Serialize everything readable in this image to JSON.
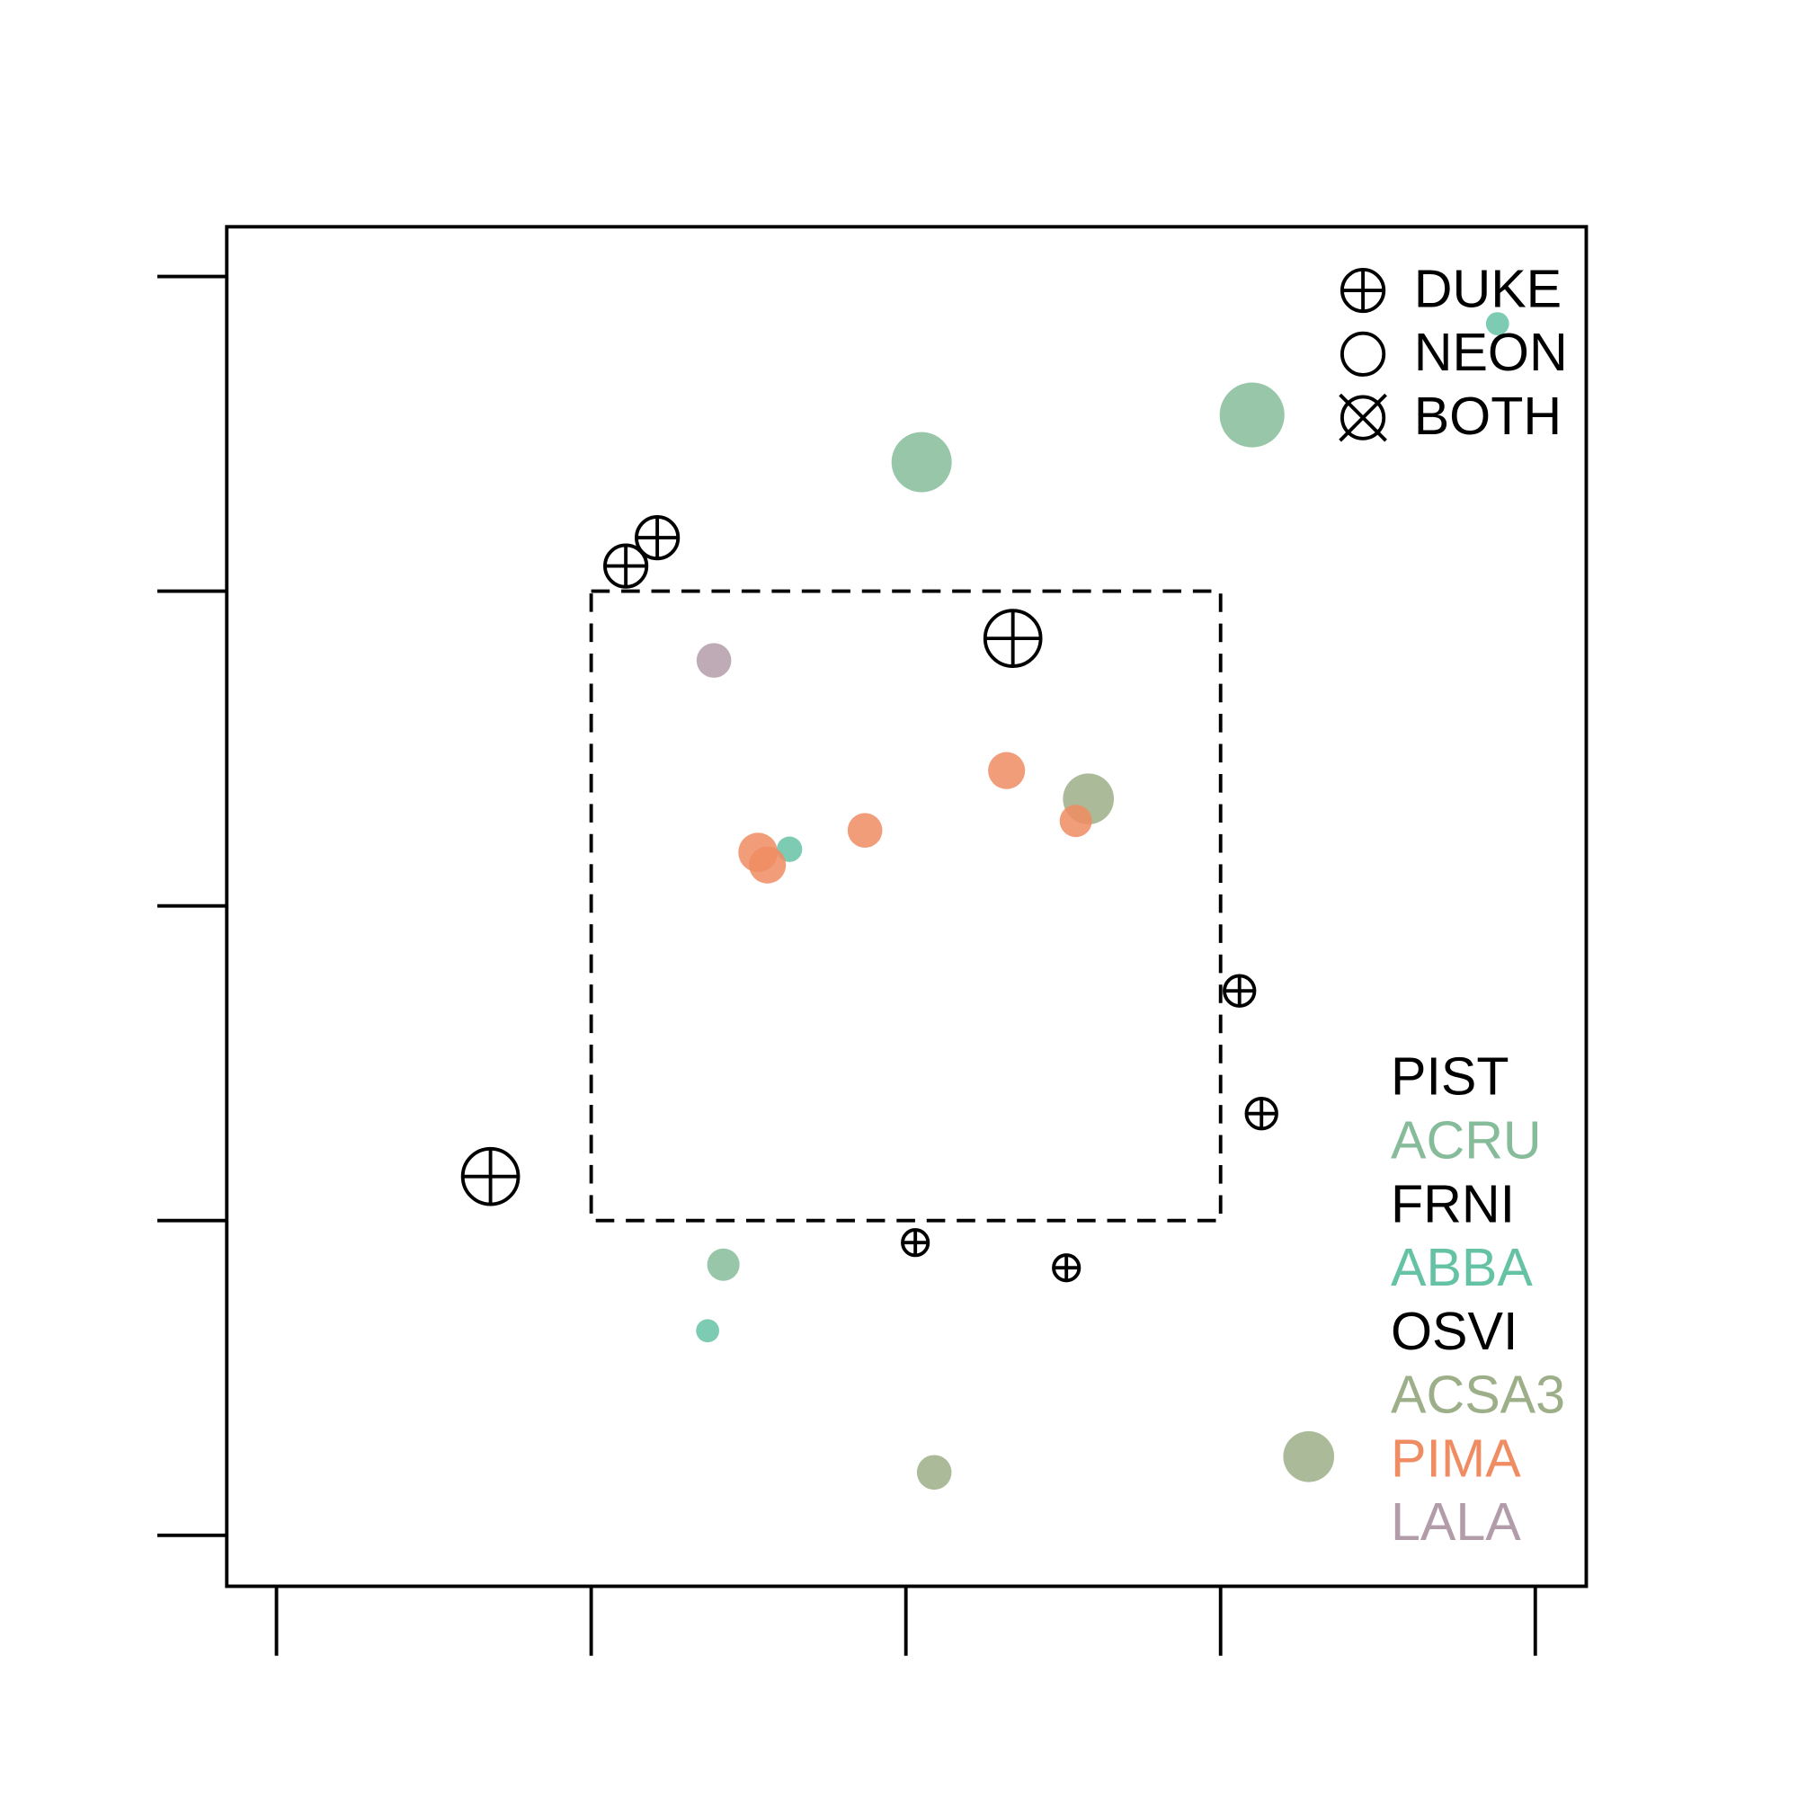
{
  "chart_data": {
    "type": "scatter",
    "xlim": [
      -2.158,
      2.162
    ],
    "ylim": [
      -2.162,
      2.158
    ],
    "xticks": [
      -2,
      -1,
      0,
      1,
      2
    ],
    "yticks": [
      -2,
      -1,
      0,
      1,
      2
    ],
    "highlight_box": {
      "x": [
        -1,
        1
      ],
      "y": [
        -1,
        1
      ]
    },
    "site_legend": [
      "DUKE",
      "NEON",
      "BOTH"
    ],
    "series": [
      {
        "name": "PIST",
        "color": "#000000",
        "site": "DUKE",
        "x": [
          -0.79,
          -0.89,
          0.34
        ],
        "y": [
          1.17,
          1.08,
          0.85
        ],
        "size": [
          18,
          18,
          24
        ]
      },
      {
        "name": "ACRU",
        "color": "#86bc9a",
        "site": "NEON",
        "x": [
          0.05,
          1.1,
          -0.58
        ],
        "y": [
          1.41,
          1.56,
          -1.14
        ],
        "size": [
          26,
          28,
          14
        ]
      },
      {
        "name": "FRNI",
        "color": "#000000",
        "site": "DUKE",
        "x": [
          1.06,
          1.13,
          -1.32
        ],
        "y": [
          -0.27,
          -0.66,
          -0.86
        ],
        "size": [
          13,
          13,
          24
        ]
      },
      {
        "name": "ABBA",
        "color": "#66c2a5",
        "site": "NEON",
        "x": [
          1.88,
          -0.37,
          -0.63
        ],
        "y": [
          1.85,
          0.18,
          -1.35
        ],
        "size": [
          10,
          11,
          10
        ]
      },
      {
        "name": "OSVI",
        "color": "#000000",
        "site": "DUKE",
        "x": [
          0.03,
          0.51
        ],
        "y": [
          -1.07,
          -1.15
        ],
        "size": [
          11,
          11
        ]
      },
      {
        "name": "ACSA3",
        "color": "#9caf88",
        "site": "NEON",
        "x": [
          0.58,
          0.09,
          1.28
        ],
        "y": [
          0.34,
          -1.8,
          -1.75
        ],
        "size": [
          22,
          15,
          22
        ]
      },
      {
        "name": "PIMA",
        "color": "#f08c62",
        "site": "NEON",
        "x": [
          0.32,
          -0.13,
          0.54,
          -0.47,
          -0.44
        ],
        "y": [
          0.43,
          0.24,
          0.27,
          0.17,
          0.13
        ],
        "size": [
          16,
          15,
          14,
          17,
          16
        ]
      },
      {
        "name": "LALA",
        "color": "#b39ca9",
        "site": "NEON",
        "x": [
          -0.61
        ],
        "y": [
          0.78
        ],
        "size": [
          15
        ]
      }
    ]
  }
}
